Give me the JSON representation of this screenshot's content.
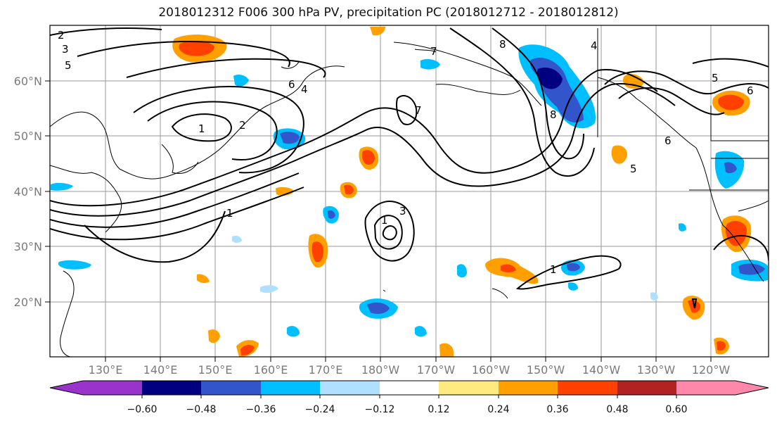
{
  "title": "2018012312 F006 300 hPa PV, precipitation PC (2018012712 - 2018012812)",
  "lat_labels": [
    "60°N",
    "50°N",
    "40°N",
    "30°N",
    "20°N"
  ],
  "lon_labels": [
    "130°E",
    "140°E",
    "150°E",
    "160°E",
    "170°E",
    "180°W",
    "170°W",
    "160°W",
    "150°W",
    "140°W",
    "130°W",
    "120°W"
  ],
  "colorbar": {
    "colors": [
      "#9933cc",
      "#000080",
      "#3355cc",
      "#00bfff",
      "#b0e0ff",
      "#ffffff",
      "#ffea80",
      "#ffa000",
      "#ff4000",
      "#b22222",
      "#ff88aa"
    ],
    "tick_labels": [
      "−0.60",
      "−0.48",
      "−0.36",
      "−0.24",
      "−0.12",
      "0.12",
      "0.24",
      "0.36",
      "0.48",
      "0.60"
    ]
  },
  "contour_labels": [
    "2",
    "3",
    "5",
    "6",
    "4",
    "8",
    "7",
    "1",
    "2",
    "8",
    "4",
    "5",
    "6",
    "1",
    "3",
    "1",
    "7",
    "5",
    "6",
    "1"
  ],
  "colors": {
    "positive_strong": "#ff4000",
    "positive": "#ffa000",
    "negative": "#00bfff",
    "negative_strong": "#3355cc"
  }
}
